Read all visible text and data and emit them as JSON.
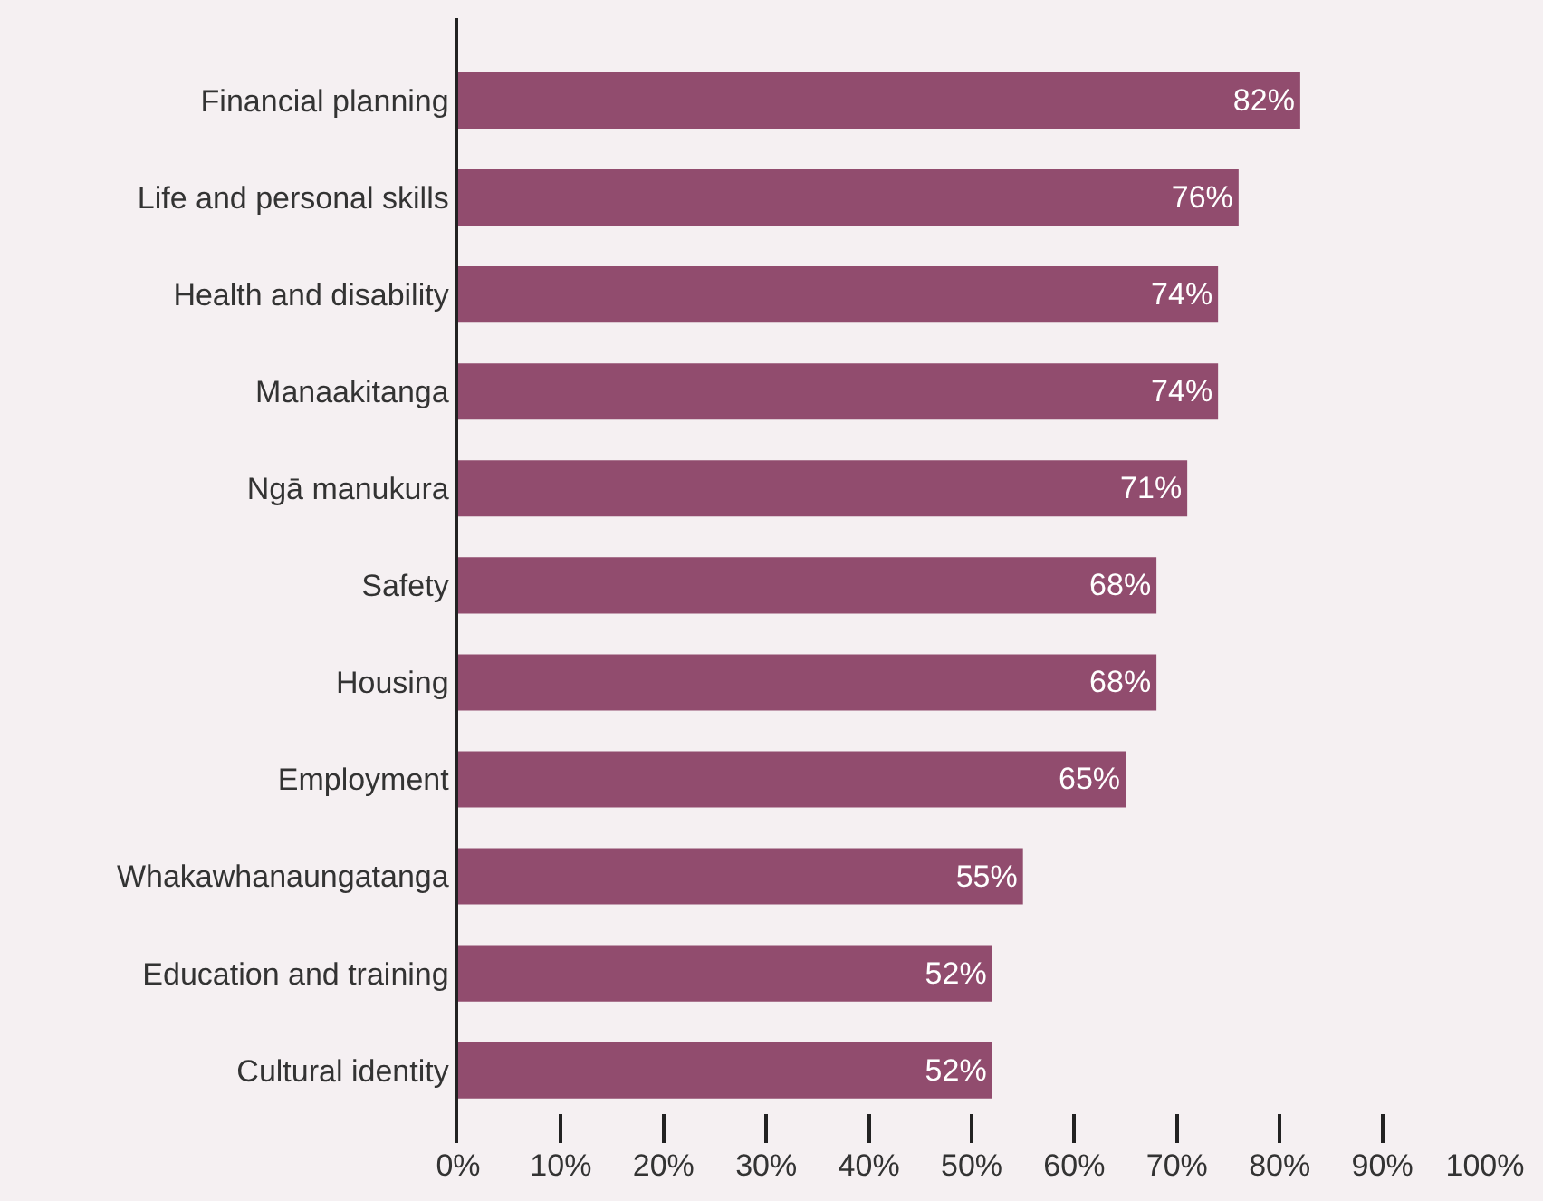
{
  "chart_data": {
    "type": "bar",
    "orientation": "horizontal",
    "categories": [
      "Financial planning",
      "Life and personal skills",
      "Health and disability",
      "Manaakitanga",
      "Ngā manukura",
      "Safety",
      "Housing",
      "Employment",
      "Whakawhanaungatanga",
      "Education and training",
      "Cultural identity"
    ],
    "values": [
      82,
      76,
      74,
      74,
      71,
      68,
      68,
      65,
      55,
      52,
      52
    ],
    "value_labels": [
      "82%",
      "76%",
      "74%",
      "74%",
      "71%",
      "68%",
      "68%",
      "65%",
      "55%",
      "52%",
      "52%"
    ],
    "color": "#914c6e",
    "xlim": [
      0,
      100
    ],
    "xticks": [
      {
        "value": 0,
        "label": "0%"
      },
      {
        "value": 10,
        "label": "10%"
      },
      {
        "value": 20,
        "label": "20%"
      },
      {
        "value": 30,
        "label": "30%"
      },
      {
        "value": 40,
        "label": "40%"
      },
      {
        "value": 50,
        "label": "50%"
      },
      {
        "value": 60,
        "label": "60%"
      },
      {
        "value": 70,
        "label": "70%"
      },
      {
        "value": 80,
        "label": "80%"
      },
      {
        "value": 90,
        "label": "90%"
      },
      {
        "value": 100,
        "label": "100%"
      }
    ],
    "grid": false,
    "legend": false
  }
}
